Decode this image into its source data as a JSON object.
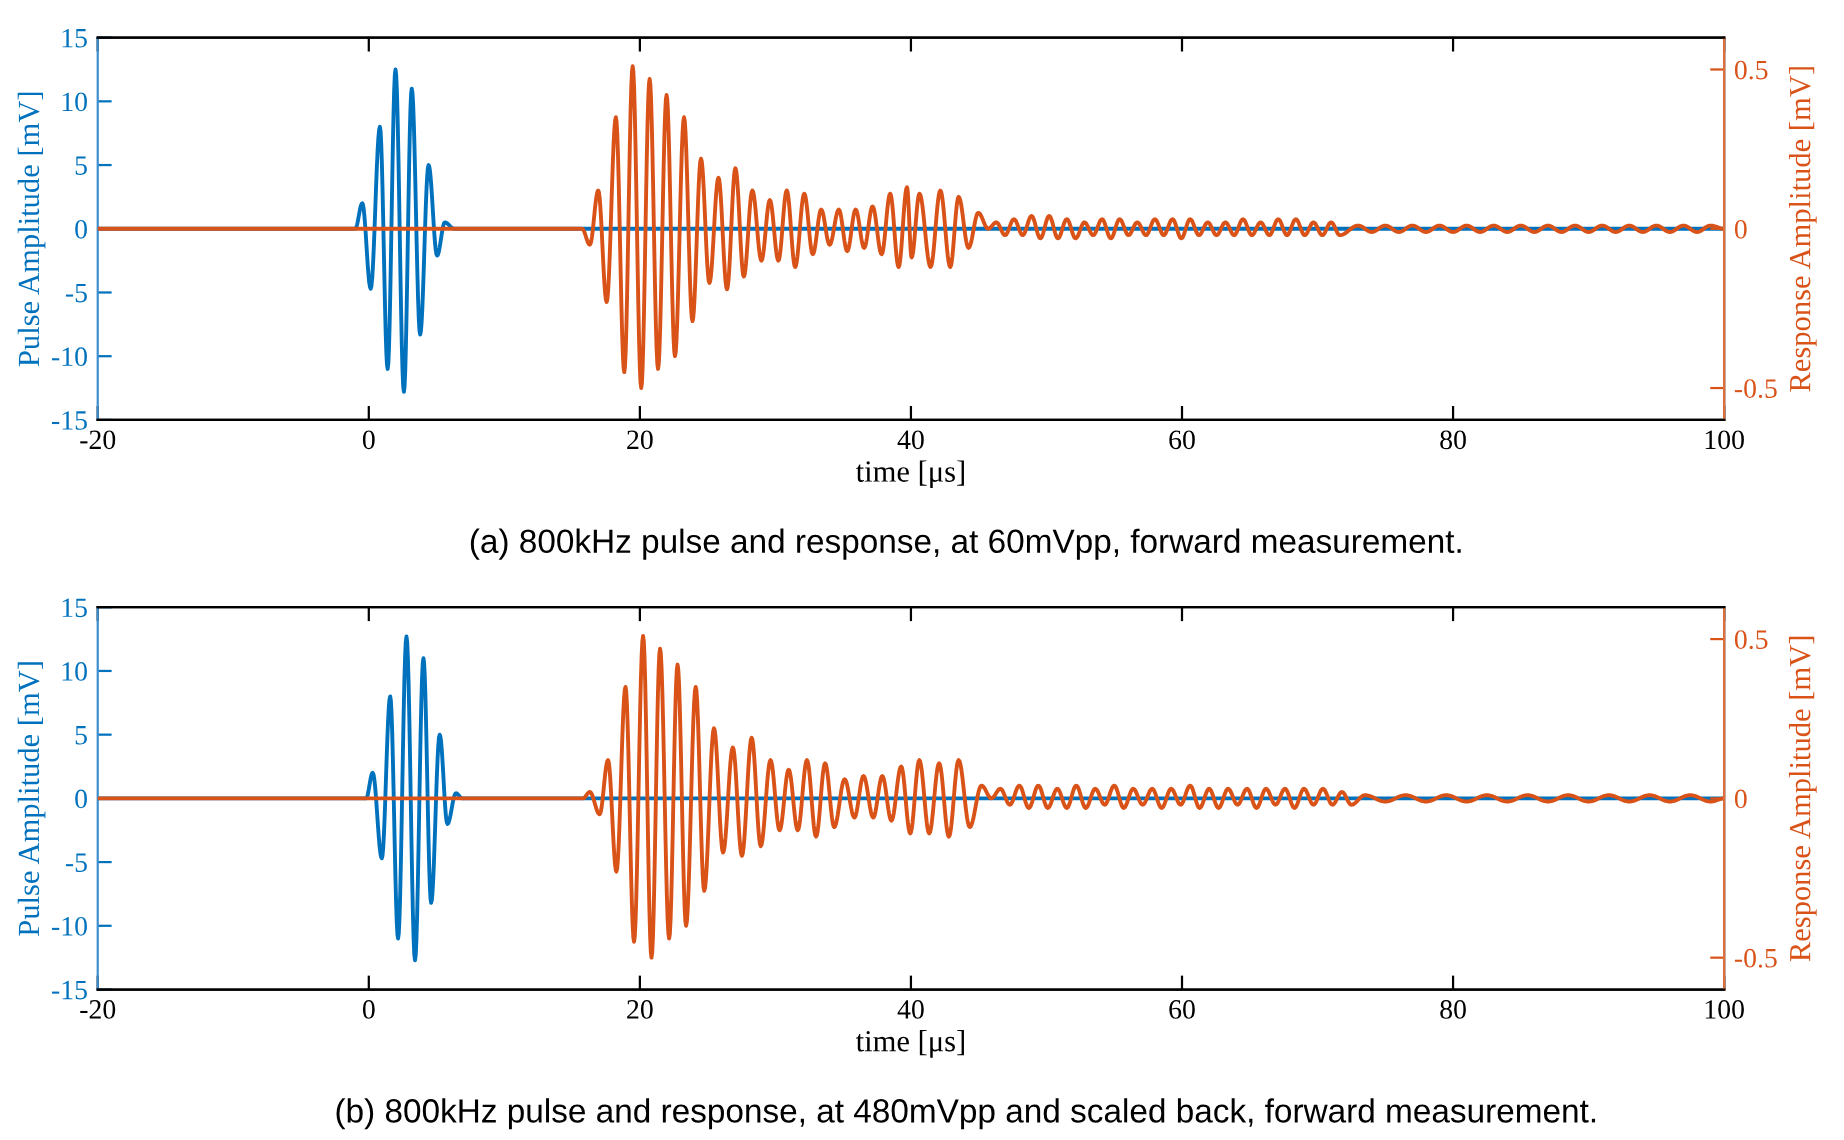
{
  "chart_data": [
    {
      "type": "line",
      "xlabel": "time [μs]",
      "ylabel": "Pulse Amplitude [mV]",
      "y2label": "Response Amplitude [mV]",
      "xlim": [
        -20,
        100
      ],
      "xticks": [
        -20,
        0,
        20,
        40,
        60,
        80,
        100
      ],
      "ylim": [
        -15,
        15
      ],
      "yticks": [
        -15,
        -10,
        -5,
        0,
        5,
        10,
        15
      ],
      "y2lim": [
        -0.6,
        0.6
      ],
      "y2ticks": [
        -0.5,
        0,
        0.5
      ],
      "grid": false,
      "annotations": [
        "(a) 800kHz pulse and response, at 60mVpp, forward measurement."
      ],
      "series": [
        {
          "color": "#0072bd",
          "x": [
            -20,
            -1,
            -0.48,
            0.14,
            0.82,
            1.39,
            1.97,
            2.59,
            3.17,
            3.79,
            4.41,
            5.04,
            5.61,
            6.3,
            100
          ],
          "values": [
            0,
            0,
            2,
            -4.7,
            8,
            -11,
            12.5,
            -12.8,
            11,
            -8.3,
            5,
            -2.1,
            0.5,
            0,
            0
          ]
        },
        {
          "color": "#d95319",
          "axis": "y2",
          "x": [
            -20,
            15.73,
            16.31,
            16.93,
            17.55,
            18.23,
            18.85,
            19.47,
            20.1,
            20.72,
            21.34,
            21.97,
            22.59,
            23.26,
            23.88,
            24.51,
            25.13,
            25.8,
            26.43,
            27.05,
            27.67,
            28.3,
            28.97,
            29.59,
            30.22,
            30.84,
            31.46,
            32.13,
            32.76,
            33.38,
            34.0,
            34.68,
            35.3,
            35.92,
            36.55,
            37.17,
            37.84,
            38.47,
            39.09,
            39.71,
            40.05,
            40.63,
            41.45,
            42.17,
            42.9,
            43.52,
            44.25,
            44.97,
            45.7,
            46.3,
            46.95,
            47.6,
            48.25,
            48.9,
            49.55,
            50.2,
            50.85,
            51.5,
            52.15,
            52.8,
            53.45,
            54.1,
            54.75,
            55.4,
            56.05,
            56.7,
            57.35,
            58.0,
            58.65,
            59.3,
            59.95,
            60.6,
            61.25,
            61.9,
            62.55,
            63.2,
            63.85,
            64.5,
            65.15,
            65.8,
            66.45,
            67.1,
            67.75,
            68.4,
            69.05,
            69.7,
            70.35,
            71.0,
            71.65,
            73,
            74,
            75,
            76,
            77,
            78,
            79,
            80,
            81,
            82,
            83,
            84,
            85,
            86,
            87,
            88,
            89,
            90,
            91,
            92,
            93,
            94,
            95,
            96,
            97,
            98,
            99,
            100
          ],
          "values": [
            0,
            0,
            -0.05,
            0.12,
            -0.23,
            0.35,
            -0.45,
            0.51,
            -0.5,
            0.47,
            -0.44,
            0.42,
            -0.4,
            0.35,
            -0.29,
            0.22,
            -0.17,
            0.16,
            -0.19,
            0.19,
            -0.15,
            0.12,
            -0.1,
            0.09,
            -0.1,
            0.12,
            -0.12,
            0.11,
            -0.08,
            0.06,
            -0.05,
            0.06,
            -0.07,
            0.06,
            -0.06,
            0.07,
            -0.08,
            0.11,
            -0.12,
            0.13,
            -0.09,
            0.11,
            -0.12,
            0.12,
            -0.12,
            0.1,
            -0.06,
            0.05,
            0,
            0.02,
            -0.02,
            0.03,
            -0.02,
            0.04,
            -0.03,
            0.04,
            -0.03,
            0.03,
            -0.03,
            0.02,
            -0.02,
            0.03,
            -0.03,
            0.03,
            -0.02,
            0.02,
            -0.02,
            0.03,
            -0.02,
            0.03,
            -0.03,
            0.03,
            -0.02,
            0.02,
            -0.02,
            0.02,
            -0.02,
            0.03,
            -0.02,
            0.02,
            -0.02,
            0.03,
            -0.02,
            0.03,
            -0.02,
            0.02,
            -0.02,
            0.02,
            -0.02,
            0.01,
            -0.01,
            0.01,
            -0.01,
            0.01,
            -0.01,
            0.01,
            -0.01,
            0.01,
            -0.01,
            0.01,
            -0.01,
            0.01,
            -0.01,
            0.01,
            -0.01,
            0.01,
            -0.01,
            0.01,
            -0.01,
            0.01,
            -0.01,
            0.01,
            -0.01,
            0.01,
            -0.01,
            0.01,
            0
          ]
        }
      ]
    },
    {
      "type": "line",
      "xlabel": "time [μs]",
      "ylabel": "Pulse Amplitude [mV]",
      "y2label": "Response Amplitude [mV]",
      "xlim": [
        -20,
        100
      ],
      "xticks": [
        -20,
        0,
        20,
        40,
        60,
        80,
        100
      ],
      "ylim": [
        -15,
        15
      ],
      "yticks": [
        -15,
        -10,
        -5,
        0,
        5,
        10,
        15
      ],
      "y2lim": [
        -0.6,
        0.6
      ],
      "y2ticks": [
        -0.5,
        0,
        0.5
      ],
      "grid": false,
      "annotations": [
        "(b) 800kHz pulse and response, at 480mVpp and scaled back, forward measurement."
      ],
      "series": [
        {
          "color": "#0072bd",
          "x": [
            -20,
            -0.2,
            0.29,
            0.96,
            1.58,
            2.16,
            2.78,
            3.41,
            4.03,
            4.6,
            5.23,
            5.8,
            6.43,
            6.9,
            100
          ],
          "values": [
            0,
            0,
            2,
            -4.7,
            8,
            -11,
            12.7,
            -12.7,
            11,
            -8.2,
            5,
            -2,
            0.4,
            0,
            0
          ]
        },
        {
          "color": "#d95319",
          "axis": "y2",
          "x": [
            -20,
            15.8,
            16.31,
            17.03,
            17.65,
            18.27,
            18.94,
            19.57,
            20.24,
            20.86,
            21.49,
            22.16,
            22.78,
            23.41,
            24.12,
            24.75,
            25.47,
            26.14,
            26.86,
            27.53,
            28.25,
            28.92,
            29.64,
            30.31,
            30.98,
            31.65,
            32.33,
            33.0,
            33.67,
            34.34,
            35.11,
            35.83,
            36.5,
            37.22,
            37.89,
            38.56,
            39.28,
            39.95,
            40.62,
            41.35,
            42.08,
            42.8,
            43.52,
            44.34,
            45.21,
            45.94,
            46.6,
            47.3,
            48.0,
            48.7,
            49.4,
            50.1,
            50.8,
            51.5,
            52.2,
            52.9,
            53.6,
            54.3,
            55.0,
            55.7,
            56.4,
            57.1,
            57.8,
            58.5,
            59.2,
            59.9,
            60.6,
            61.3,
            62.0,
            62.7,
            63.4,
            64.1,
            64.8,
            65.5,
            66.2,
            66.9,
            67.6,
            68.3,
            69.0,
            69.7,
            70.4,
            71.1,
            71.8,
            72.5,
            73.5,
            75,
            76.5,
            78,
            79.5,
            81,
            82.5,
            84,
            85.5,
            87,
            88.5,
            90,
            91.5,
            93,
            94.5,
            96,
            97.5,
            99,
            100
          ],
          "values": [
            0,
            0,
            0.02,
            -0.05,
            0.12,
            -0.23,
            0.35,
            -0.45,
            0.51,
            -0.5,
            0.47,
            -0.44,
            0.42,
            -0.4,
            0.35,
            -0.29,
            0.22,
            -0.17,
            0.16,
            -0.18,
            0.19,
            -0.15,
            0.12,
            -0.1,
            0.09,
            -0.1,
            0.12,
            -0.12,
            0.11,
            -0.09,
            0.06,
            -0.06,
            0.07,
            -0.06,
            0.07,
            -0.07,
            0.1,
            -0.11,
            0.12,
            -0.11,
            0.11,
            -0.12,
            0.12,
            -0.09,
            0.04,
            0,
            0.03,
            -0.02,
            0.04,
            -0.03,
            0.04,
            -0.03,
            0.03,
            -0.03,
            0.04,
            -0.03,
            0.03,
            -0.02,
            0.04,
            -0.03,
            0.03,
            -0.02,
            0.03,
            -0.03,
            0.03,
            -0.02,
            0.04,
            -0.03,
            0.03,
            -0.03,
            0.03,
            -0.02,
            0.03,
            -0.03,
            0.03,
            -0.02,
            0.03,
            -0.03,
            0.03,
            -0.02,
            0.03,
            -0.02,
            0.02,
            -0.02,
            0.01,
            -0.01,
            0.01,
            -0.01,
            0.01,
            -0.01,
            0.01,
            -0.01,
            0.01,
            -0.01,
            0.01,
            -0.01,
            0.01,
            -0.01,
            0.01,
            -0.01,
            0.01,
            -0.01,
            0
          ]
        }
      ]
    }
  ]
}
